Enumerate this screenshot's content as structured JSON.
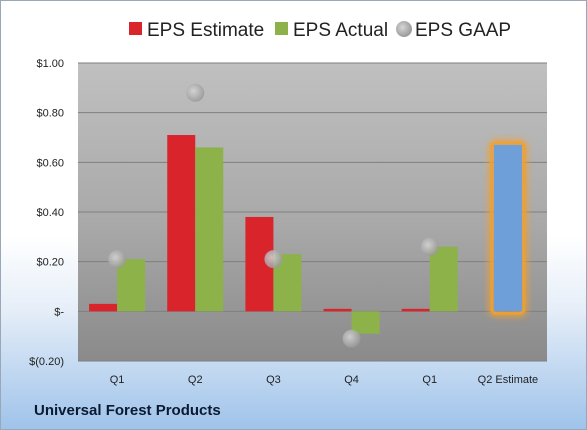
{
  "company": "Universal Forest Products",
  "chart_data": {
    "type": "bar",
    "categories": [
      "Q1",
      "Q2",
      "Q3",
      "Q4",
      "Q1",
      "Q2 Estimate"
    ],
    "series": [
      {
        "name": "EPS Estimate",
        "type": "bar",
        "color": "#d9242c",
        "values": [
          0.03,
          0.71,
          0.38,
          0.01,
          0.01,
          null
        ]
      },
      {
        "name": "EPS Actual",
        "type": "bar",
        "color": "#8db24a",
        "values": [
          0.21,
          0.66,
          0.23,
          -0.09,
          0.26,
          null
        ]
      },
      {
        "name": "EPS GAAP",
        "type": "scatter",
        "color": "#a6a6a6",
        "values": [
          0.21,
          0.88,
          0.21,
          -0.11,
          0.26,
          null
        ]
      },
      {
        "name": "",
        "type": "bar",
        "color": "#6f9fd8",
        "highlight": "#f0a030",
        "values": [
          null,
          null,
          null,
          null,
          null,
          0.67
        ]
      }
    ],
    "y_ticks": [
      "$1.00",
      "$0.80",
      "$0.60",
      "$0.40",
      "$0.20",
      "$-",
      "$(0.20)"
    ],
    "ylim": [
      -0.2,
      1.0
    ],
    "grid": true,
    "legend_position": "top"
  }
}
